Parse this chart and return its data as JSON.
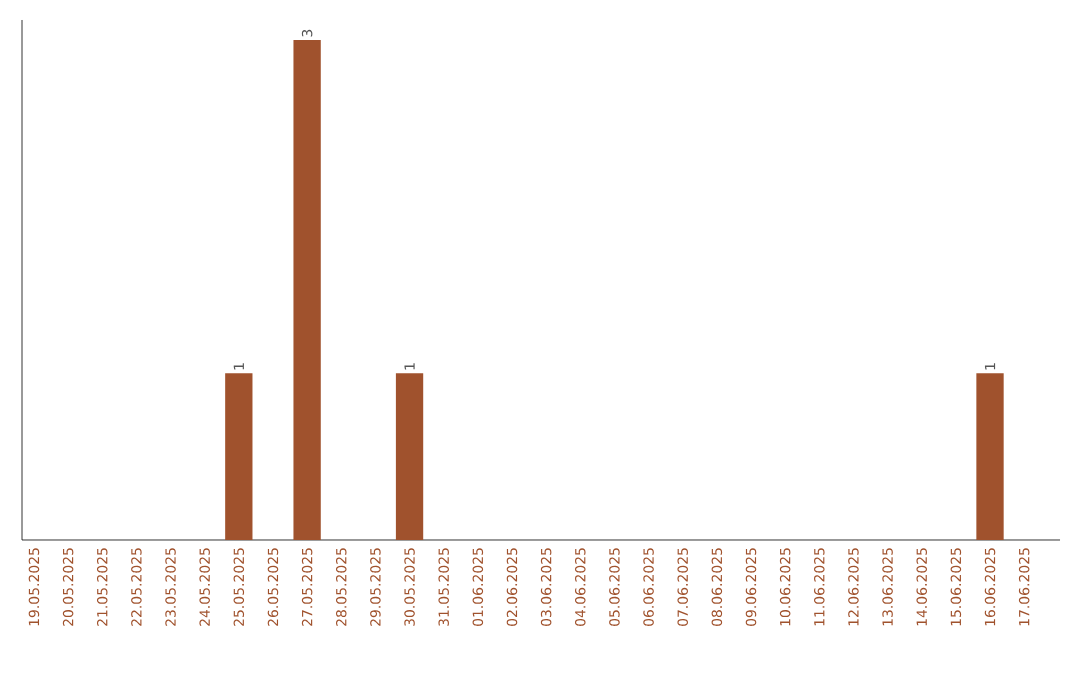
{
  "chart_data": {
    "type": "bar",
    "categories": [
      "19.05.2025",
      "20.05.2025",
      "21.05.2025",
      "22.05.2025",
      "23.05.2025",
      "24.05.2025",
      "25.05.2025",
      "26.05.2025",
      "27.05.2025",
      "28.05.2025",
      "29.05.2025",
      "30.05.2025",
      "31.05.2025",
      "01.06.2025",
      "02.06.2025",
      "03.06.2025",
      "04.06.2025",
      "05.06.2025",
      "06.06.2025",
      "07.06.2025",
      "08.06.2025",
      "09.06.2025",
      "10.06.2025",
      "11.06.2025",
      "12.06.2025",
      "13.06.2025",
      "14.06.2025",
      "15.06.2025",
      "16.06.2025",
      "17.06.2025"
    ],
    "values": [
      0,
      0,
      0,
      0,
      0,
      0,
      1,
      0,
      3,
      0,
      0,
      1,
      0,
      0,
      0,
      0,
      0,
      0,
      0,
      0,
      0,
      0,
      0,
      0,
      0,
      0,
      0,
      0,
      1,
      0
    ],
    "value_labels": [
      null,
      null,
      null,
      null,
      null,
      null,
      "1",
      null,
      "3",
      null,
      null,
      "1",
      null,
      null,
      null,
      null,
      null,
      null,
      null,
      null,
      null,
      null,
      null,
      null,
      null,
      null,
      null,
      null,
      "1",
      null
    ],
    "color": "#a0522d"
  }
}
